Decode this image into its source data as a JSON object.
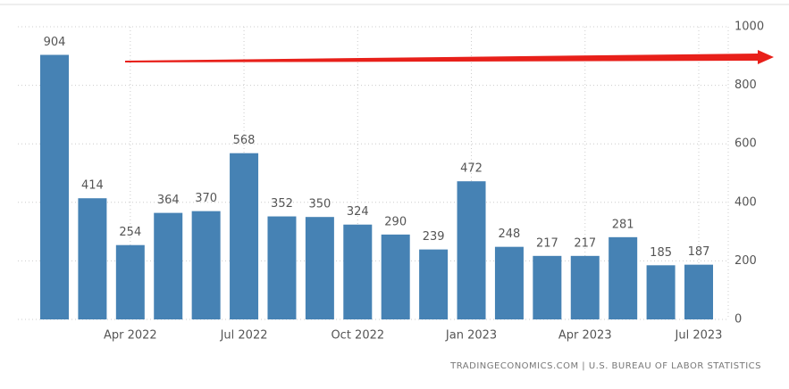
{
  "chart_data": {
    "type": "bar",
    "categories": [
      null,
      null,
      "Apr 2022",
      null,
      null,
      "Jul 2022",
      null,
      null,
      "Oct 2022",
      null,
      null,
      "Jan 2023",
      null,
      null,
      "Apr 2023",
      null,
      null,
      "Jul 2023"
    ],
    "values": [
      904,
      414,
      254,
      364,
      370,
      568,
      352,
      350,
      324,
      290,
      239,
      472,
      248,
      217,
      217,
      281,
      185,
      187
    ],
    "color": "#4682b4",
    "ylim": [
      0,
      1000
    ],
    "yticks": [
      0,
      200,
      400,
      600,
      800,
      1000
    ],
    "grid": true,
    "source": "TRADINGECONOMICS.COM | U.S. BUREAU OF LABOR STATISTICS"
  }
}
